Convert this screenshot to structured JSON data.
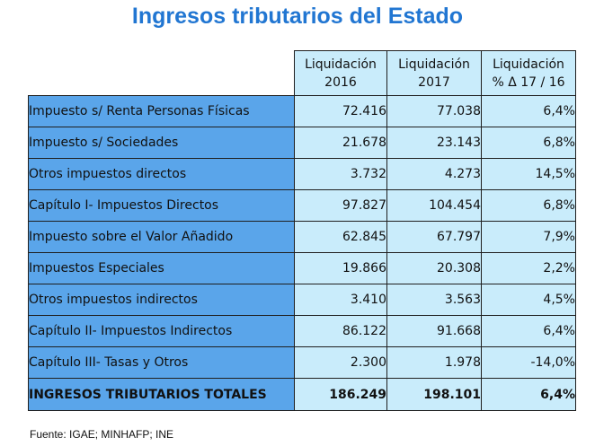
{
  "title": "Ingresos tributarios del Estado",
  "table": {
    "headers": [
      {
        "line1": "Liquidación",
        "line2": "2016"
      },
      {
        "line1": "Liquidación",
        "line2": "2017"
      },
      {
        "line1": "Liquidación",
        "line2": "% Δ 17 / 16"
      }
    ],
    "rows": [
      {
        "label": "Impuesto s/ Renta Personas  Físicas",
        "v2016": "72.416",
        "v2017": "77.038",
        "pct": "6,4%"
      },
      {
        "label": "Impuesto s/ Sociedades",
        "v2016": "21.678",
        "v2017": "23.143",
        "pct": "6,8%"
      },
      {
        "label": "Otros impuestos directos",
        "v2016": "3.732",
        "v2017": "4.273",
        "pct": "14,5%"
      },
      {
        "label": "Capítulo I- Impuestos Directos",
        "v2016": "97.827",
        "v2017": "104.454",
        "pct": "6,8%"
      },
      {
        "label": "Impuesto sobre el Valor Añadido",
        "v2016": "62.845",
        "v2017": "67.797",
        "pct": "7,9%"
      },
      {
        "label": "Impuestos Especiales",
        "v2016": "19.866",
        "v2017": "20.308",
        "pct": "2,2%"
      },
      {
        "label": "Otros impuestos indirectos",
        "v2016": "3.410",
        "v2017": "3.563",
        "pct": "4,5%"
      },
      {
        "label": "Capítulo II- Impuestos Indirectos",
        "v2016": "86.122",
        "v2017": "91.668",
        "pct": "6,4%"
      },
      {
        "label": "Capítulo III- Tasas y Otros",
        "v2016": "2.300",
        "v2017": "1.978",
        "pct": "-14,0%"
      }
    ],
    "total": {
      "label": "INGRESOS TRIBUTARIOS TOTALES",
      "v2016": "186.249",
      "v2017": "198.101",
      "pct": "6,4%"
    }
  },
  "source": "Fuente: IGAE; MINHAFP; INE",
  "colors": {
    "title": "#2176d2",
    "label_cell": "#5aa5ea",
    "value_cell": "#c9ecfb"
  }
}
